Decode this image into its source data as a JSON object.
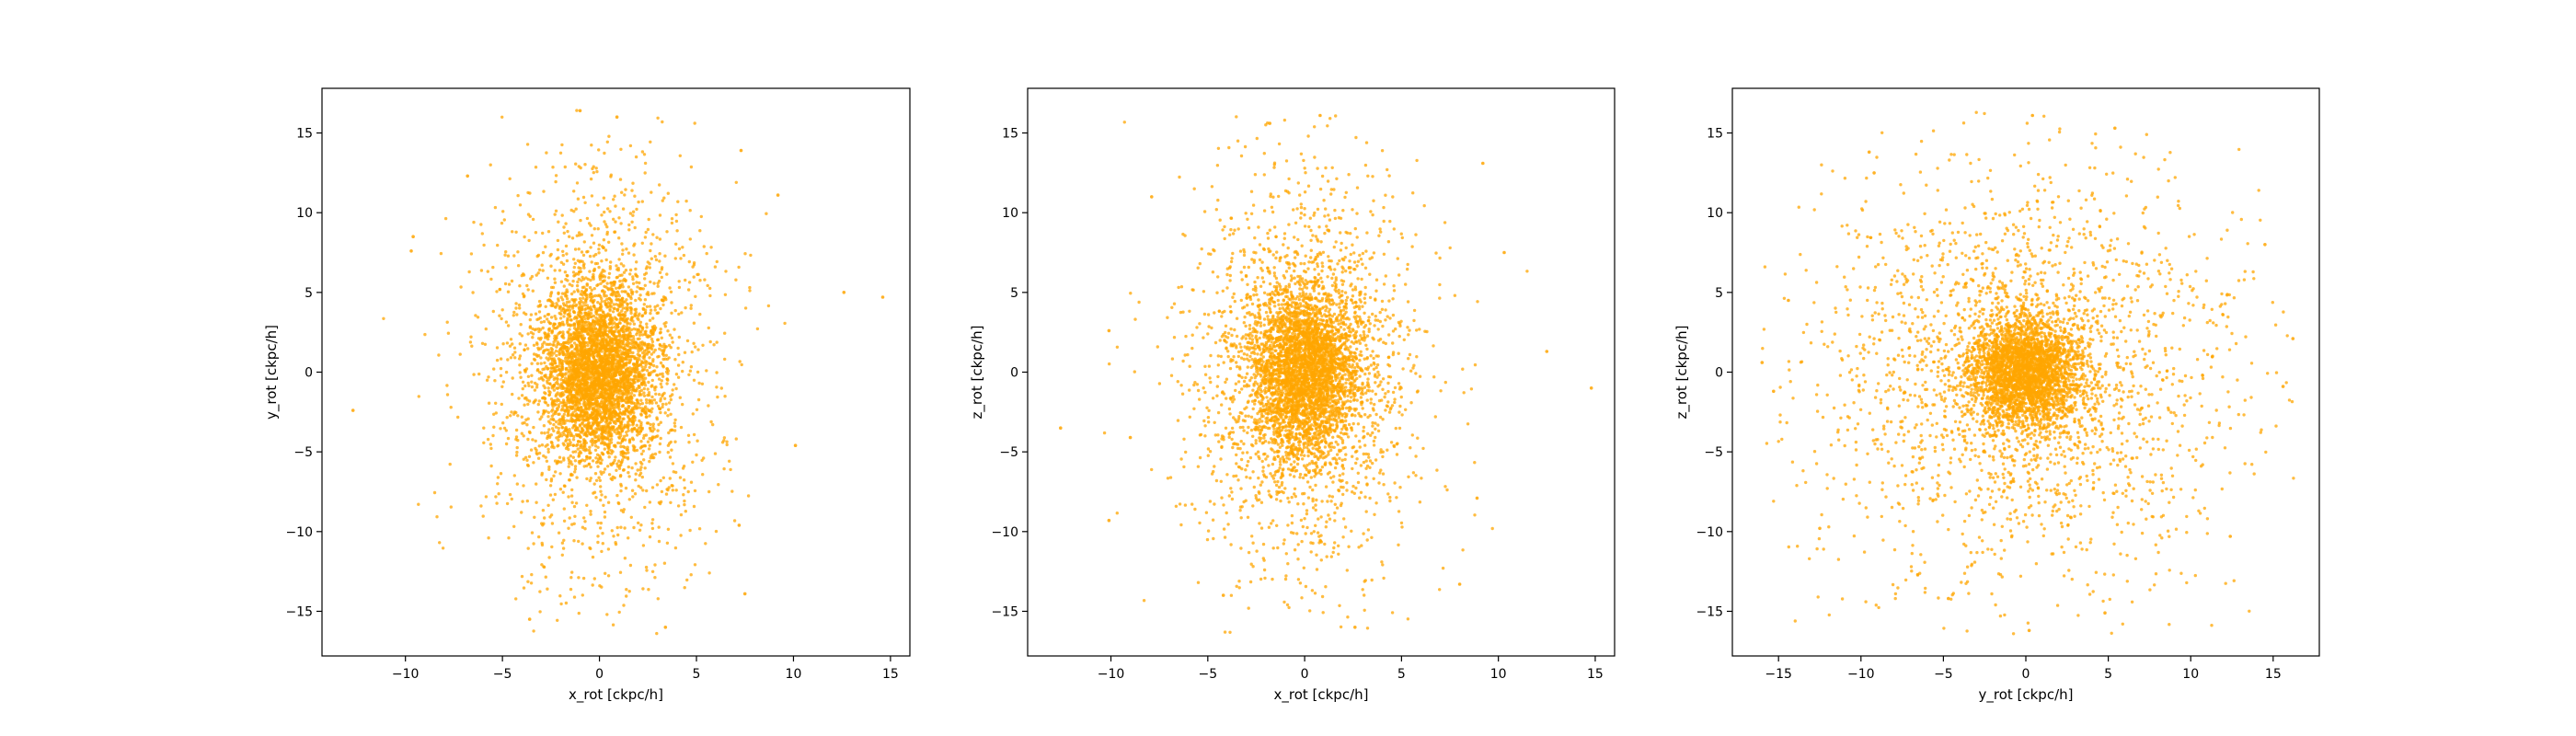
{
  "colors": {
    "points": "#ffa500",
    "axes": "#000000",
    "background": "#ffffff"
  },
  "chart_data": [
    {
      "type": "scatter",
      "xlabel": "x_rot [ckpc/h]",
      "ylabel": "y_rot [ckpc/h]",
      "xlim": [
        -14.3,
        16.0
      ],
      "ylim": [
        -17.8,
        17.8
      ],
      "xticks": [
        -10,
        -5,
        0,
        5,
        10,
        15
      ],
      "yticks": [
        -15,
        -10,
        -5,
        0,
        5,
        10,
        15
      ],
      "grid": false,
      "legend": "none",
      "distribution": {
        "n_points": 5000,
        "center": [
          0.0,
          0.0
        ],
        "scales": [
          1.4,
          2.6
        ],
        "halo_fraction": 0.35,
        "halo_scales": [
          3.0,
          6.5
        ]
      },
      "points": [
        [
          -12.7,
          -2.4
        ],
        [
          14.6,
          4.7
        ],
        [
          12.6,
          5.0
        ],
        [
          7.3,
          13.9
        ],
        [
          9.2,
          11.1
        ],
        [
          -9.6,
          8.5
        ],
        [
          -9.7,
          7.6
        ],
        [
          10.1,
          -4.6
        ],
        [
          7.5,
          -13.9
        ],
        [
          -6.8,
          12.3
        ],
        [
          0.9,
          16.0
        ],
        [
          -1.0,
          16.4
        ],
        [
          3.4,
          -16.0
        ],
        [
          -3.6,
          -15.5
        ],
        [
          7.2,
          -9.6
        ]
      ]
    },
    {
      "type": "scatter",
      "xlabel": "x_rot [ckpc/h]",
      "ylabel": "z_rot [ckpc/h]",
      "xlim": [
        -14.3,
        16.0
      ],
      "ylim": [
        -17.8,
        17.8
      ],
      "xticks": [
        -10,
        -5,
        0,
        5,
        10,
        15
      ],
      "yticks": [
        -15,
        -10,
        -5,
        0,
        5,
        10,
        15
      ],
      "grid": false,
      "legend": "none",
      "distribution": {
        "n_points": 5000,
        "center": [
          0.0,
          0.0
        ],
        "scales": [
          1.4,
          2.6
        ],
        "halo_fraction": 0.35,
        "halo_scales": [
          3.0,
          6.5
        ]
      },
      "points": [
        [
          -12.6,
          -3.5
        ],
        [
          14.8,
          -1.0
        ],
        [
          12.5,
          1.3
        ],
        [
          10.3,
          7.5
        ],
        [
          9.2,
          13.1
        ],
        [
          -7.9,
          11.0
        ],
        [
          -10.1,
          -9.3
        ],
        [
          -9.0,
          -4.1
        ],
        [
          8.0,
          -13.3
        ],
        [
          0.8,
          16.1
        ],
        [
          -1.8,
          15.6
        ],
        [
          2.6,
          -16.0
        ],
        [
          -4.2,
          -14.0
        ],
        [
          8.9,
          -7.9
        ],
        [
          -10.1,
          2.6
        ]
      ]
    },
    {
      "type": "scatter",
      "xlabel": "y_rot [ckpc/h]",
      "ylabel": "z_rot [ckpc/h]",
      "xlim": [
        -17.8,
        17.8
      ],
      "ylim": [
        -17.8,
        17.8
      ],
      "xticks": [
        -15,
        -10,
        -5,
        0,
        5,
        10,
        15
      ],
      "yticks": [
        -15,
        -10,
        -5,
        0,
        5,
        10,
        15
      ],
      "grid": false,
      "legend": "none",
      "distribution": {
        "n_points": 5000,
        "center": [
          0.0,
          0.0
        ],
        "scales": [
          1.7,
          1.7
        ],
        "halo_fraction": 0.45,
        "halo_scales": [
          6.5,
          6.5
        ]
      },
      "points": [
        [
          -16.0,
          0.6
        ],
        [
          -15.3,
          -1.2
        ],
        [
          16.2,
          2.1
        ],
        [
          15.6,
          -0.9
        ],
        [
          -9.5,
          13.8
        ],
        [
          -9.2,
          12.5
        ],
        [
          5.4,
          15.3
        ],
        [
          0.4,
          16.1
        ],
        [
          -12.5,
          -9.8
        ],
        [
          12.4,
          -10.3
        ],
        [
          -4.7,
          -14.2
        ],
        [
          0.2,
          -16.2
        ],
        [
          4.8,
          -15.1
        ],
        [
          -14.4,
          4.5
        ],
        [
          14.5,
          8.0
        ]
      ]
    }
  ]
}
